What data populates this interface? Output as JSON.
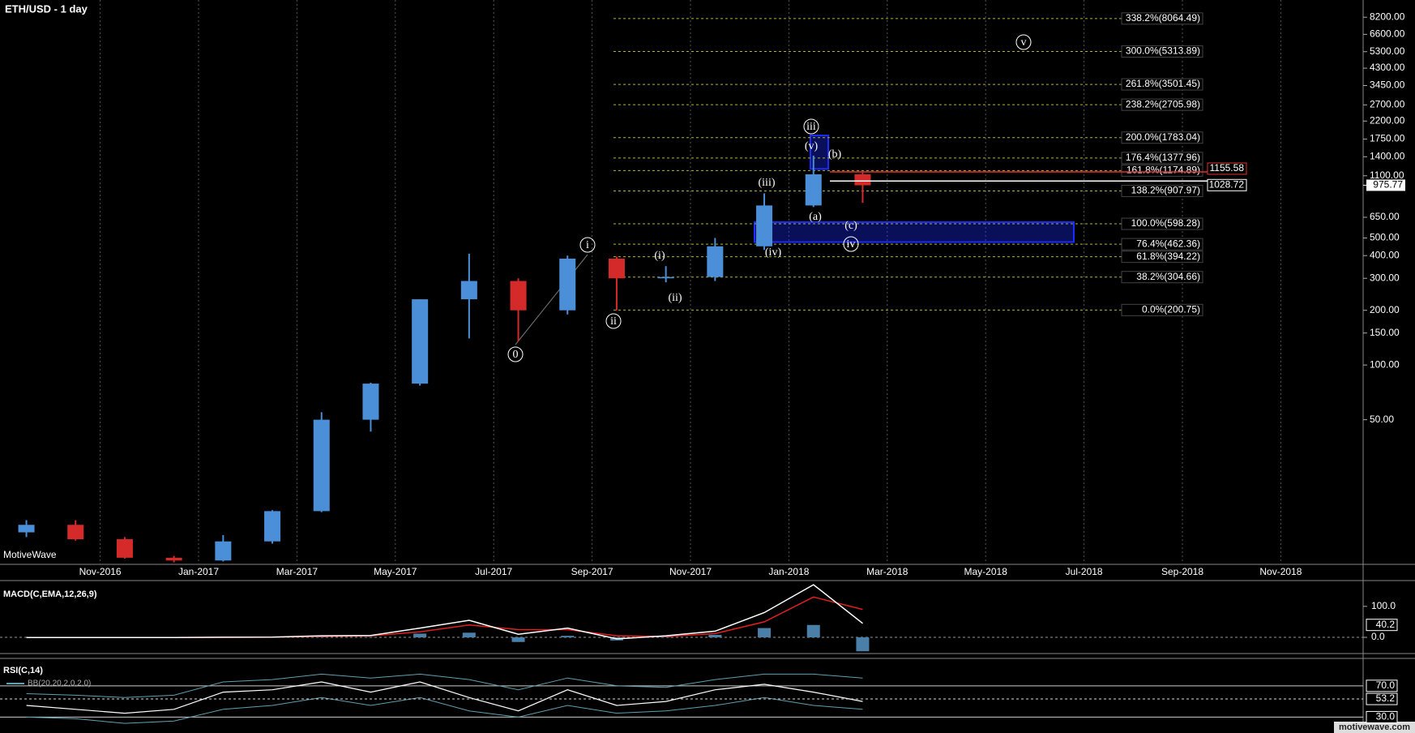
{
  "chart_data": [
    {
      "type": "candlestick",
      "title": "ETH/USD - 1 day",
      "categories": [
        null,
        null,
        "Nov-2016",
        null,
        "Jan-2017",
        null,
        "Mar-2017",
        null,
        "May-2017",
        null,
        "Jul-2017",
        null,
        "Sep-2017",
        null,
        "Nov-2017",
        null,
        "Jan-2018",
        null,
        "Mar-2018",
        null,
        "May-2018",
        null,
        "Jul-2018",
        null,
        "Sep-2018",
        null,
        "Nov-2018"
      ],
      "open": [
        12.0,
        13.2,
        11.0,
        8.7,
        8.4,
        10.7,
        15.7,
        50,
        79,
        230,
        290,
        200,
        385,
        300,
        305,
        450,
        755,
        1120,
        null,
        null,
        null,
        null,
        null,
        null,
        null,
        null,
        null
      ],
      "high": [
        14.0,
        14.0,
        11.3,
        8.9,
        11.6,
        15.9,
        55,
        80,
        230,
        410,
        300,
        400,
        395,
        350,
        500,
        880,
        1420,
        1160,
        null,
        null,
        null,
        null,
        null,
        null,
        null,
        null,
        null
      ],
      "low": [
        11.3,
        10.8,
        8.6,
        8.2,
        8.3,
        10.4,
        15.5,
        43,
        77,
        140,
        135,
        190,
        200,
        285,
        290,
        430,
        740,
        780,
        null,
        null,
        null,
        null,
        null,
        null,
        null,
        null,
        null
      ],
      "close": [
        13.2,
        11.0,
        8.7,
        8.4,
        10.7,
        15.7,
        50,
        79,
        230,
        290,
        200,
        385,
        300,
        305,
        450,
        755,
        1120,
        975,
        null,
        null,
        null,
        null,
        null,
        null,
        null,
        null,
        null
      ],
      "up_color": "#4a8fd8",
      "down_color": "#d42a2a",
      "log_scale": true,
      "grid": true,
      "ylim": [
        8,
        10200
      ],
      "yticks": [
        {
          "value": 8200,
          "label": "8200.00"
        },
        {
          "value": 6600,
          "label": "6600.00"
        },
        {
          "value": 5300,
          "label": "5300.00"
        },
        {
          "value": 4300,
          "label": "4300.00"
        },
        {
          "value": 3450,
          "label": "3450.00"
        },
        {
          "value": 2700,
          "label": "2700.00"
        },
        {
          "value": 2200,
          "label": "2200.00"
        },
        {
          "value": 1750,
          "label": "1750.00"
        },
        {
          "value": 1400,
          "label": "1400.00"
        },
        {
          "value": 1100,
          "label": "1100.00"
        },
        {
          "value": 650,
          "label": "650.00"
        },
        {
          "value": 500,
          "label": "500.00"
        },
        {
          "value": 400,
          "label": "400.00"
        },
        {
          "value": 300,
          "label": "300.00"
        },
        {
          "value": 200,
          "label": "200.00"
        },
        {
          "value": 150,
          "label": "150.00"
        },
        {
          "value": 100,
          "label": "100.00"
        },
        {
          "value": 50,
          "label": "50.00"
        }
      ],
      "fib_color": "#b4b432",
      "fib_levels": [
        {
          "value": 8064.49,
          "label": "338.2%(8064.49)"
        },
        {
          "value": 5313.89,
          "label": "300.0%(5313.89)"
        },
        {
          "value": 3501.45,
          "label": "261.8%(3501.45)"
        },
        {
          "value": 2705.98,
          "label": "238.2%(2705.98)"
        },
        {
          "value": 1783.04,
          "label": "200.0%(1783.04)"
        },
        {
          "value": 1377.96,
          "label": "176.4%(1377.96)"
        },
        {
          "value": 1174.89,
          "label": "161.8%(1174.89)"
        },
        {
          "value": 907.97,
          "label": "138.2%(907.97)"
        },
        {
          "value": 598.28,
          "label": "100.0%(598.28)"
        },
        {
          "value": 462.36,
          "label": "76.4%(462.36)"
        },
        {
          "value": 394.22,
          "label": "61.8%(394.22)"
        },
        {
          "value": 304.66,
          "label": "38.2%(304.66)"
        },
        {
          "value": 200.75,
          "label": "0.0%(200.75)"
        }
      ],
      "zones": [
        {
          "low": 1200,
          "high": 1833,
          "color": "#1a2cff"
        },
        {
          "low": 475,
          "high": 611,
          "color": "#1a2cff"
        }
      ],
      "price_lines": [
        {
          "value": 1155.58,
          "color": "#e03030"
        },
        {
          "value": 1028.72,
          "color": "#ffffff"
        }
      ],
      "last_price": 975.77,
      "annotations": [
        {
          "text": "0",
          "circled": true
        },
        {
          "text": "i",
          "circled": true
        },
        {
          "text": "ii",
          "circled": true
        },
        {
          "text": "(i)",
          "circled": false
        },
        {
          "text": "(ii)",
          "circled": false
        },
        {
          "text": "iii",
          "circled": true
        },
        {
          "text": "(iii)",
          "circled": false
        },
        {
          "text": "(iv)",
          "circled": false
        },
        {
          "text": "(v)",
          "circled": false
        },
        {
          "text": "(a)",
          "circled": false
        },
        {
          "text": "(b)",
          "circled": false
        },
        {
          "text": "(c)",
          "circled": false
        },
        {
          "text": "iv",
          "circled": true
        },
        {
          "text": "v",
          "circled": true
        }
      ],
      "watermark": "MotiveWave",
      "footer": "motivewave.com"
    },
    {
      "type": "macd",
      "title": "MACD(C,EMA,12,26,9)",
      "macd": [
        -0.5,
        -0.8,
        -0.7,
        -0.3,
        0.3,
        1,
        5,
        6,
        30,
        55,
        10,
        30,
        -5,
        5,
        20,
        80,
        170,
        45,
        null,
        null,
        null,
        null,
        null,
        null,
        null,
        null,
        null
      ],
      "signal": [
        -0.3,
        -0.6,
        -0.7,
        -0.5,
        0,
        0.5,
        3,
        5,
        18,
        40,
        25,
        25,
        5,
        3,
        12,
        50,
        130,
        90,
        null,
        null,
        null,
        null,
        null,
        null,
        null,
        null,
        null
      ],
      "histogram": [
        -0.2,
        -0.2,
        0,
        0.2,
        0.3,
        0.5,
        2,
        1,
        12,
        15,
        -15,
        5,
        -10,
        2,
        8,
        30,
        40,
        -45,
        null,
        null,
        null,
        null,
        null,
        null,
        null,
        null,
        null
      ],
      "macd_color": "#ffffff",
      "signal_color": "#e02020",
      "histogram_color": "#4a7fa8",
      "ylim": [
        -47,
        178
      ],
      "yticks": [
        {
          "value": 100,
          "label": "100.0"
        },
        {
          "value": 0,
          "label": "0.0"
        }
      ],
      "last_value": 40.2
    },
    {
      "type": "rsi",
      "title": "RSI(C,14)",
      "band_label": "BB(20,20,2,0,2,0)",
      "rsi": [
        45,
        40,
        35,
        40,
        62,
        65,
        75,
        62,
        75,
        55,
        38,
        65,
        45,
        50,
        65,
        72,
        62,
        50,
        null,
        null,
        null,
        null,
        null,
        null,
        null,
        null,
        null
      ],
      "bb_upper": [
        60,
        58,
        55,
        58,
        75,
        78,
        85,
        80,
        85,
        78,
        65,
        80,
        70,
        68,
        78,
        85,
        85,
        80,
        null,
        null,
        null,
        null,
        null,
        null,
        null,
        null,
        null
      ],
      "bb_lower": [
        30,
        28,
        22,
        25,
        40,
        45,
        55,
        45,
        55,
        38,
        30,
        45,
        35,
        38,
        45,
        55,
        45,
        40,
        null,
        null,
        null,
        null,
        null,
        null,
        null,
        null,
        null
      ],
      "rsi_color": "#ffffff",
      "band_color": "#5fa0b0",
      "ylim": [
        18,
        103
      ],
      "yticks": [
        {
          "value": 70,
          "label": "70.0"
        },
        {
          "value": 30,
          "label": "30.0"
        }
      ],
      "last_value": 53.2
    }
  ]
}
